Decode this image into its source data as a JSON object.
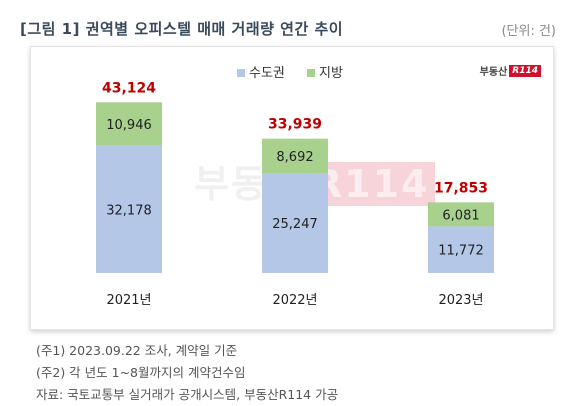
{
  "header": {
    "title": "[그림 1] 권역별 오피스텔 매매 거래량 연간 추이",
    "unit": "(단위: 건)"
  },
  "logo": {
    "text": "부동산",
    "box": "R114"
  },
  "watermark": {
    "text": "부동산",
    "box": "R114"
  },
  "colors": {
    "capital": "#b4c7e7",
    "regional": "#a9d18e",
    "total": "#c00000",
    "grid_text": "#222222"
  },
  "chart_data": {
    "type": "bar",
    "stacked": true,
    "categories": [
      "2021년",
      "2022년",
      "2023년"
    ],
    "series": [
      {
        "name": "수도권",
        "values": [
          32178,
          25247,
          11772
        ],
        "labels": [
          "32,178",
          "25,247",
          "11,772"
        ]
      },
      {
        "name": "지방",
        "values": [
          10946,
          8692,
          6081
        ],
        "labels": [
          "10,946",
          "8,692",
          "6,081"
        ]
      }
    ],
    "totals": [
      43124,
      33939,
      17853
    ],
    "total_labels": [
      "43,124",
      "33,939",
      "17,853"
    ],
    "legend_position": "top-center",
    "grid": false,
    "ylim": [
      0,
      48000
    ]
  },
  "notes": [
    "(주1) 2023.09.22 조사, 계약일 기준",
    "(주2) 각 년도 1~8월까지의 계약건수임",
    "자료: 국토교통부 실거래가 공개시스템, 부동산R114 가공"
  ]
}
